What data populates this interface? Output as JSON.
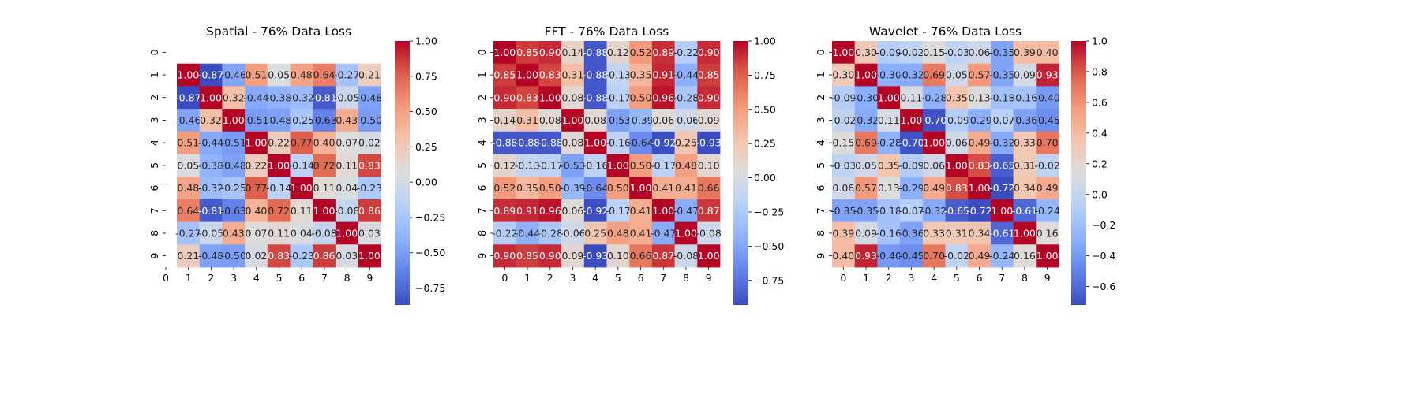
{
  "chart_data": [
    {
      "type": "heatmap",
      "title": "Spatial - 76% Data Loss",
      "colormap": "coolwarm",
      "x_ticks": [
        "0",
        "1",
        "2",
        "3",
        "4",
        "5",
        "6",
        "7",
        "8",
        "9"
      ],
      "y_ticks": [
        "0",
        "1",
        "2",
        "3",
        "4",
        "5",
        "6",
        "7",
        "8",
        "9"
      ],
      "vmin": -0.87,
      "vmax": 1.0,
      "colorbar_ticks": [
        -0.75,
        -0.5,
        -0.25,
        0.0,
        0.25,
        0.5,
        0.75,
        1.0
      ],
      "colorbar_tick_labels": [
        "−0.75",
        "−0.50",
        "−0.25",
        "0.00",
        "0.25",
        "0.50",
        "0.75",
        "1.00"
      ],
      "offset_x_axis": true,
      "matrix": [
        [
          null,
          null,
          null,
          null,
          null,
          null,
          null,
          null,
          null,
          null
        ],
        [
          null,
          1.0,
          -0.87,
          -0.46,
          0.51,
          0.05,
          0.48,
          0.64,
          -0.27,
          0.21
        ],
        [
          null,
          -0.87,
          1.0,
          0.32,
          -0.44,
          -0.38,
          -0.32,
          -0.81,
          -0.05,
          -0.48
        ],
        [
          null,
          -0.46,
          0.32,
          1.0,
          -0.51,
          -0.48,
          -0.25,
          -0.63,
          0.43,
          -0.5
        ],
        [
          null,
          0.51,
          -0.44,
          -0.51,
          1.0,
          0.22,
          0.77,
          0.4,
          0.07,
          0.02
        ],
        [
          null,
          0.05,
          -0.38,
          -0.48,
          0.22,
          1.0,
          -0.14,
          0.72,
          0.11,
          0.83
        ],
        [
          null,
          0.48,
          -0.32,
          -0.25,
          0.77,
          -0.14,
          1.0,
          0.11,
          0.04,
          -0.23
        ],
        [
          null,
          0.64,
          -0.81,
          -0.63,
          0.4,
          0.72,
          0.11,
          1.0,
          -0.08,
          0.86
        ],
        [
          null,
          -0.27,
          -0.05,
          0.43,
          0.07,
          0.11,
          0.04,
          -0.08,
          1.0,
          0.03
        ],
        [
          null,
          0.21,
          -0.48,
          -0.5,
          0.02,
          0.83,
          -0.23,
          0.86,
          0.03,
          1.0
        ]
      ]
    },
    {
      "type": "heatmap",
      "title": "FFT - 76% Data Loss",
      "colormap": "coolwarm",
      "x_ticks": [
        "0",
        "1",
        "2",
        "3",
        "4",
        "5",
        "6",
        "7",
        "8",
        "9"
      ],
      "y_ticks": [
        "0",
        "1",
        "2",
        "3",
        "4",
        "5",
        "6",
        "7",
        "8",
        "9"
      ],
      "vmin": -0.93,
      "vmax": 1.0,
      "colorbar_ticks": [
        -0.75,
        -0.5,
        -0.25,
        0.0,
        0.25,
        0.5,
        0.75,
        1.0
      ],
      "colorbar_tick_labels": [
        "−0.75",
        "−0.50",
        "−0.25",
        "0.00",
        "0.25",
        "0.50",
        "0.75",
        "1.00"
      ],
      "offset_x_axis": false,
      "matrix": [
        [
          1.0,
          0.85,
          0.9,
          0.14,
          -0.88,
          0.12,
          0.52,
          0.89,
          -0.22,
          0.9
        ],
        [
          0.85,
          1.0,
          0.83,
          0.31,
          -0.88,
          -0.13,
          0.35,
          0.91,
          -0.44,
          0.85
        ],
        [
          0.9,
          0.83,
          1.0,
          0.08,
          -0.88,
          -0.17,
          0.5,
          0.96,
          -0.28,
          0.9
        ],
        [
          0.14,
          0.31,
          0.08,
          1.0,
          0.08,
          -0.53,
          -0.39,
          0.06,
          -0.06,
          0.09
        ],
        [
          -0.88,
          -0.88,
          -0.88,
          0.08,
          1.0,
          -0.16,
          -0.64,
          -0.92,
          0.25,
          -0.93
        ],
        [
          0.12,
          -0.13,
          -0.17,
          -0.53,
          -0.16,
          1.0,
          0.5,
          -0.17,
          0.48,
          0.1
        ],
        [
          0.52,
          0.35,
          0.5,
          -0.39,
          -0.64,
          0.5,
          1.0,
          0.41,
          0.41,
          0.66
        ],
        [
          0.89,
          0.91,
          0.96,
          0.06,
          -0.92,
          -0.17,
          0.41,
          1.0,
          -0.47,
          0.87
        ],
        [
          -0.22,
          -0.44,
          -0.28,
          -0.06,
          0.25,
          0.48,
          0.41,
          -0.47,
          1.0,
          -0.08
        ],
        [
          0.9,
          0.85,
          0.9,
          0.09,
          -0.93,
          0.1,
          0.66,
          0.87,
          -0.08,
          1.0
        ]
      ]
    },
    {
      "type": "heatmap",
      "title": "Wavelet - 76% Data Loss",
      "colormap": "coolwarm",
      "x_ticks": [
        "0",
        "1",
        "2",
        "3",
        "4",
        "5",
        "6",
        "7",
        "8",
        "9"
      ],
      "y_ticks": [
        "0",
        "1",
        "2",
        "3",
        "4",
        "5",
        "6",
        "7",
        "8",
        "9"
      ],
      "vmin": -0.72,
      "vmax": 1.0,
      "colorbar_ticks": [
        -0.6,
        -0.4,
        -0.2,
        0.0,
        0.2,
        0.4,
        0.6,
        0.8,
        1.0
      ],
      "colorbar_tick_labels": [
        "−0.6",
        "−0.4",
        "−0.2",
        "0.0",
        "0.2",
        "0.4",
        "0.6",
        "0.8",
        "1.0"
      ],
      "offset_x_axis": false,
      "matrix": [
        [
          1.0,
          0.3,
          -0.09,
          -0.02,
          0.15,
          -0.03,
          0.06,
          -0.35,
          0.39,
          0.4
        ],
        [
          0.3,
          1.0,
          -0.3,
          -0.32,
          0.69,
          0.05,
          0.57,
          -0.35,
          0.09,
          0.93
        ],
        [
          -0.09,
          -0.3,
          1.0,
          0.11,
          -0.28,
          0.35,
          0.13,
          -0.18,
          -0.16,
          -0.4
        ],
        [
          -0.02,
          -0.32,
          0.11,
          1.0,
          -0.7,
          -0.09,
          -0.29,
          -0.07,
          -0.36,
          -0.45
        ],
        [
          0.15,
          0.69,
          -0.28,
          -0.7,
          1.0,
          0.06,
          0.49,
          -0.32,
          0.33,
          0.7
        ],
        [
          -0.03,
          0.05,
          0.35,
          -0.09,
          0.06,
          1.0,
          0.83,
          -0.65,
          0.31,
          -0.02
        ],
        [
          0.06,
          0.57,
          0.13,
          -0.29,
          0.49,
          0.83,
          1.0,
          -0.72,
          0.34,
          0.49
        ],
        [
          -0.35,
          -0.35,
          -0.18,
          -0.07,
          -0.32,
          -0.65,
          -0.72,
          1.0,
          -0.61,
          -0.24
        ],
        [
          0.39,
          0.09,
          -0.16,
          -0.36,
          0.33,
          0.31,
          0.34,
          -0.61,
          1.0,
          0.16
        ],
        [
          0.4,
          0.93,
          -0.4,
          -0.45,
          0.7,
          -0.02,
          0.49,
          -0.24,
          0.16,
          1.0
        ]
      ]
    }
  ]
}
